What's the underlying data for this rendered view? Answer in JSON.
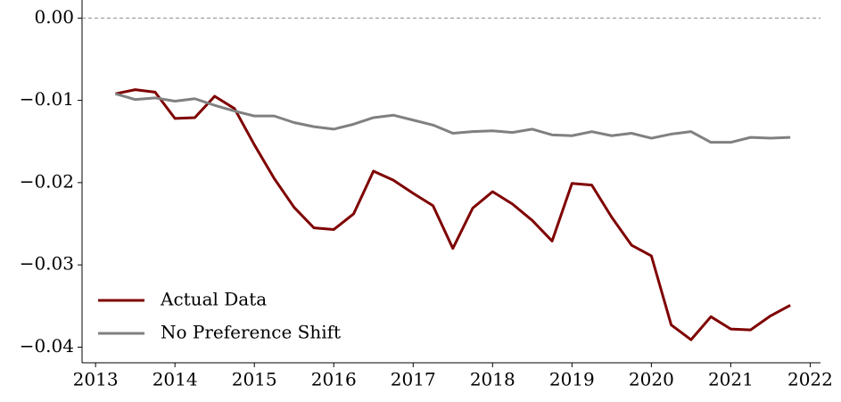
{
  "chart_data": {
    "type": "line",
    "x": [
      2013.25,
      2013.5,
      2013.75,
      2014.0,
      2014.25,
      2014.5,
      2014.75,
      2015.0,
      2015.25,
      2015.5,
      2015.75,
      2016.0,
      2016.25,
      2016.5,
      2016.75,
      2017.0,
      2017.25,
      2017.5,
      2017.75,
      2018.0,
      2018.25,
      2018.5,
      2018.75,
      2019.0,
      2019.25,
      2019.5,
      2019.75,
      2020.0,
      2020.25,
      2020.5,
      2020.75,
      2021.0,
      2021.25,
      2021.5,
      2021.75
    ],
    "series": [
      {
        "name": "Actual Data",
        "color": "#7f0000",
        "values": [
          -0.0092,
          -0.0087,
          -0.009,
          -0.0122,
          -0.0121,
          -0.0095,
          -0.011,
          -0.0154,
          -0.0195,
          -0.023,
          -0.0255,
          -0.0257,
          -0.0238,
          -0.0186,
          -0.0197,
          -0.0213,
          -0.0228,
          -0.028,
          -0.0231,
          -0.0211,
          -0.0226,
          -0.0246,
          -0.0271,
          -0.0201,
          -0.0203,
          -0.0242,
          -0.0276,
          -0.0289,
          -0.0373,
          -0.0391,
          -0.0363,
          -0.0378,
          -0.0379,
          -0.0362,
          -0.0349
        ]
      },
      {
        "name": "No Preference Shift",
        "color": "#808080",
        "values": [
          -0.0092,
          -0.0099,
          -0.0097,
          -0.0101,
          -0.0098,
          -0.0106,
          -0.0113,
          -0.0119,
          -0.0119,
          -0.0127,
          -0.0132,
          -0.0135,
          -0.0129,
          -0.0121,
          -0.0118,
          -0.0124,
          -0.013,
          -0.014,
          -0.0138,
          -0.0137,
          -0.0139,
          -0.0135,
          -0.0142,
          -0.0143,
          -0.0138,
          -0.0143,
          -0.014,
          -0.0146,
          -0.0141,
          -0.0138,
          -0.0151,
          -0.0151,
          -0.0145,
          -0.0146,
          -0.0145
        ]
      }
    ],
    "xlim": [
      2012.83,
      2022.13
    ],
    "xticks": [
      2013,
      2014,
      2015,
      2016,
      2017,
      2018,
      2019,
      2020,
      2021,
      2022
    ],
    "ylim": [
      -0.0419,
      0.0022
    ],
    "yticks": [
      {
        "value": 0,
        "label": "0.00"
      },
      {
        "value": -0.01,
        "label": "−0.01"
      },
      {
        "value": -0.02,
        "label": "−0.02"
      },
      {
        "value": -0.03,
        "label": "−0.03"
      },
      {
        "value": -0.04,
        "label": "−0.04"
      }
    ],
    "reference_line": 0,
    "legend": "lower left"
  }
}
